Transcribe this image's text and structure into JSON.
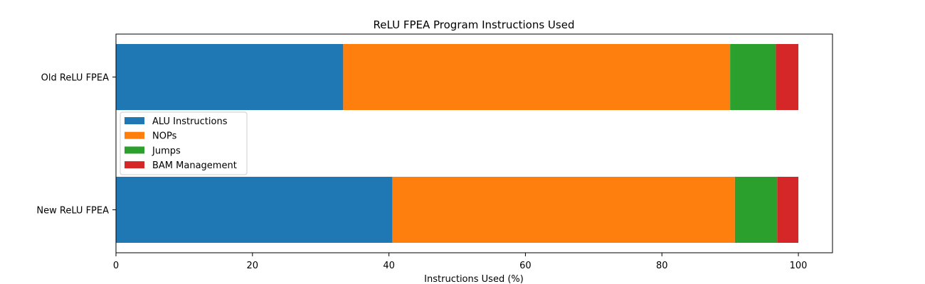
{
  "chart_data": {
    "type": "bar",
    "orientation": "horizontal",
    "stacked": true,
    "title": "ReLU FPEA Program Instructions Used",
    "xlabel": "Instructions Used (%)",
    "ylabel": "",
    "categories": [
      "Old ReLU FPEA",
      "New ReLU FPEA"
    ],
    "series": [
      {
        "name": "ALU Instructions",
        "color": "#1f77b4",
        "values": [
          33.3,
          40.5
        ]
      },
      {
        "name": "NOPs",
        "color": "#ff7f0e",
        "values": [
          56.7,
          50.2
        ]
      },
      {
        "name": "Jumps",
        "color": "#2ca02c",
        "values": [
          6.7,
          6.2
        ]
      },
      {
        "name": "BAM Management",
        "color": "#d62728",
        "values": [
          3.3,
          3.1
        ]
      }
    ],
    "xlim": [
      0,
      105
    ],
    "xticks": [
      0,
      20,
      40,
      60,
      80,
      100
    ],
    "grid": false,
    "legend_position": "center-left"
  }
}
